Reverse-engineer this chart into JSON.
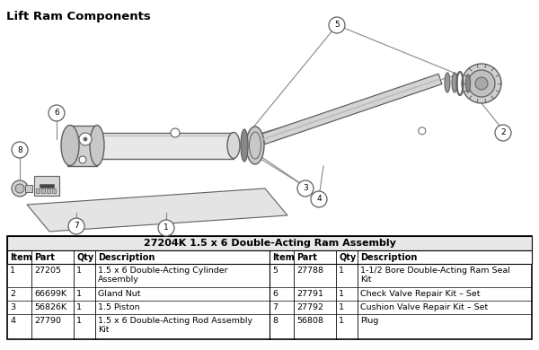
{
  "title": "Lift Ram Components",
  "table_title": "27204K 1.5 x 6 Double-Acting Ram Assembly",
  "table_rows": [
    [
      "1",
      "27205",
      "1",
      "1.5 x 6 Double-Acting Cylinder\nAssembly",
      "5",
      "27788",
      "1",
      "1-1/2 Bore Double-Acting Ram Seal\nKit"
    ],
    [
      "2",
      "66699K",
      "1",
      "Gland Nut",
      "6",
      "27791",
      "1",
      "Check Valve Repair Kit – Set"
    ],
    [
      "3",
      "56826K",
      "1",
      "1.5 Piston",
      "7",
      "27792",
      "1",
      "Cushion Valve Repair Kit – Set"
    ],
    [
      "4",
      "27790",
      "1",
      "1.5 x 6 Double-Acting Rod Assembly\nKit",
      "8",
      "56808",
      "1",
      "Plug"
    ]
  ],
  "col_headers": [
    "Item",
    "Part",
    "Qty",
    "Description"
  ],
  "background_color": "#ffffff",
  "dc": "#606060",
  "lc": "#888888"
}
